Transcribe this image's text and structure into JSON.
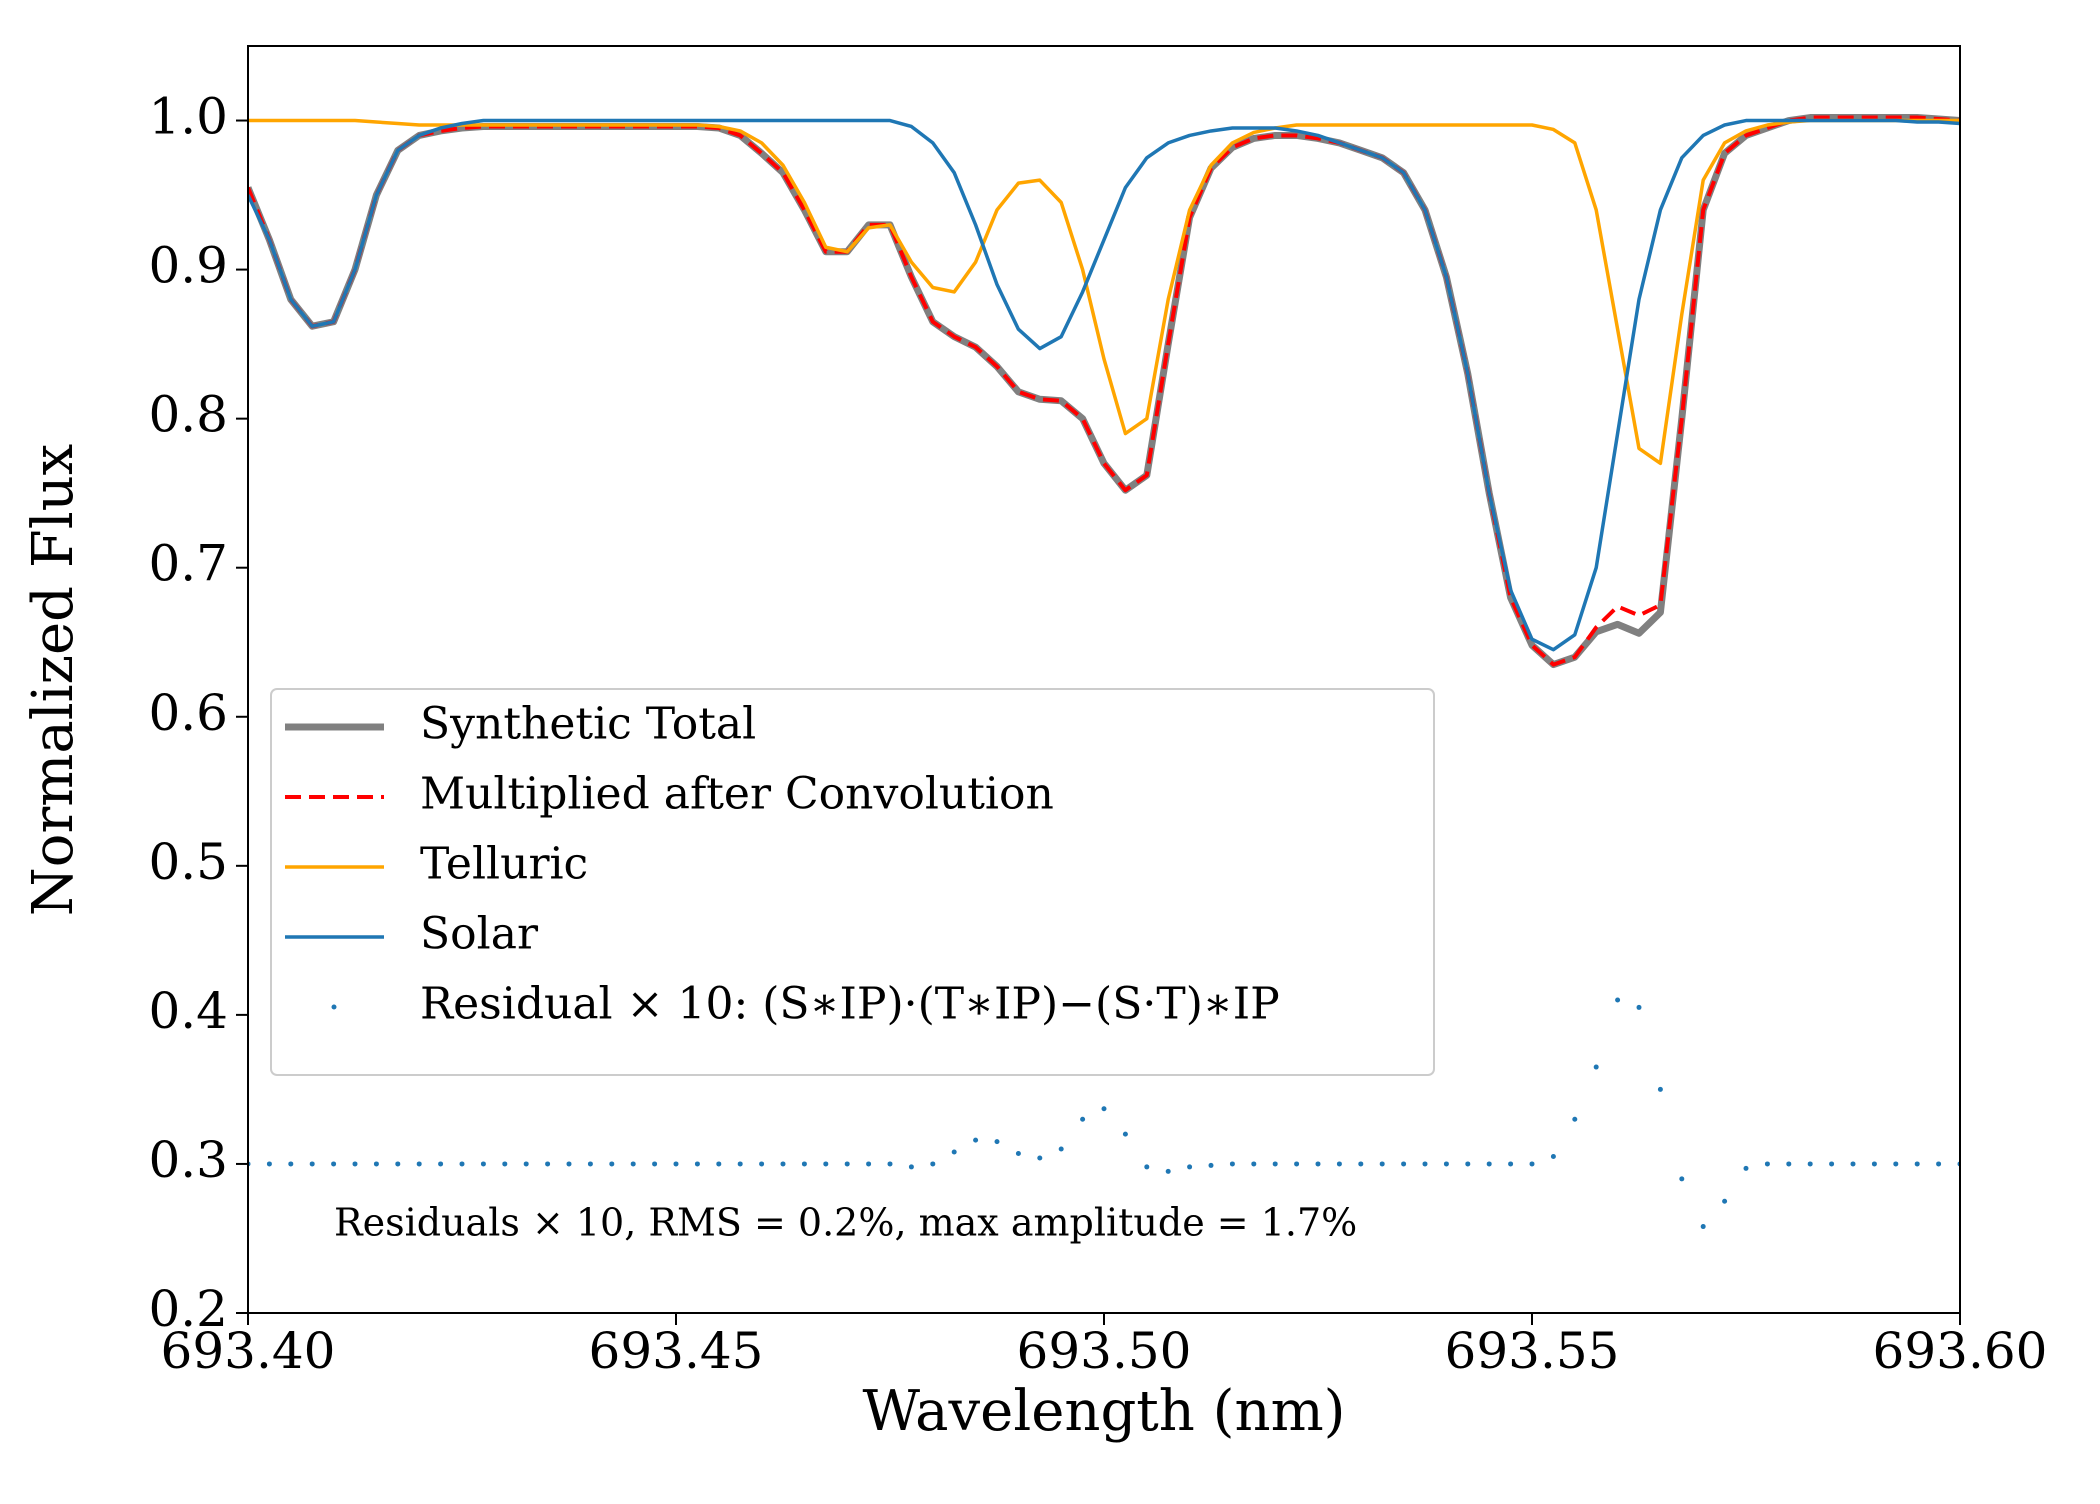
{
  "chart_data": {
    "type": "line",
    "xlabel": "Wavelength (nm)",
    "ylabel": "Normalized Flux",
    "annotation": "Residuals × 10, RMS = 0.2%, max amplitude = 1.7%",
    "xlim": [
      693.4,
      693.6
    ],
    "ylim": [
      0.2,
      1.05
    ],
    "xticks": [
      {
        "value": 693.4,
        "label": "693.40"
      },
      {
        "value": 693.45,
        "label": "693.45"
      },
      {
        "value": 693.5,
        "label": "693.50"
      },
      {
        "value": 693.55,
        "label": "693.55"
      },
      {
        "value": 693.6,
        "label": "693.60"
      }
    ],
    "yticks": [
      0.2,
      0.3,
      0.4,
      0.5,
      0.6,
      0.7,
      0.8,
      0.9,
      {
        "value": 1,
        "label": "1.0"
      }
    ],
    "legend": true,
    "x": [
      693.4,
      693.4025,
      693.405,
      693.4075,
      693.41,
      693.4125,
      693.415,
      693.4175,
      693.42,
      693.4225,
      693.425,
      693.4275,
      693.43,
      693.4325,
      693.435,
      693.4375,
      693.44,
      693.4425,
      693.445,
      693.4475,
      693.45,
      693.4525,
      693.455,
      693.4575,
      693.46,
      693.4625,
      693.465,
      693.4675,
      693.47,
      693.4725,
      693.475,
      693.4775,
      693.48,
      693.4825,
      693.485,
      693.4875,
      693.49,
      693.4925,
      693.495,
      693.4975,
      693.5,
      693.5025,
      693.505,
      693.5075,
      693.51,
      693.5125,
      693.515,
      693.5175,
      693.52,
      693.5225,
      693.525,
      693.5275,
      693.53,
      693.5325,
      693.535,
      693.5375,
      693.54,
      693.5425,
      693.545,
      693.5475,
      693.55,
      693.5525,
      693.555,
      693.5575,
      693.56,
      693.5625,
      693.565,
      693.5675,
      693.57,
      693.5725,
      693.575,
      693.5775,
      693.58,
      693.5825,
      693.585,
      693.5875,
      693.59,
      693.5925,
      693.595,
      693.5975,
      693.6
    ],
    "series": [
      {
        "name": "Synthetic Total",
        "color": "#808080",
        "linestyle": "solid",
        "width": 7,
        "values": [
          0.955,
          0.92,
          0.88,
          0.862,
          0.865,
          0.9,
          0.95,
          0.98,
          0.99,
          0.993,
          0.995,
          0.996,
          0.996,
          0.996,
          0.996,
          0.996,
          0.996,
          0.996,
          0.996,
          0.996,
          0.996,
          0.996,
          0.995,
          0.99,
          0.978,
          0.965,
          0.94,
          0.912,
          0.912,
          0.93,
          0.93,
          0.895,
          0.865,
          0.855,
          0.848,
          0.835,
          0.818,
          0.813,
          0.812,
          0.8,
          0.77,
          0.752,
          0.762,
          0.85,
          0.935,
          0.968,
          0.982,
          0.988,
          0.99,
          0.99,
          0.988,
          0.985,
          0.98,
          0.975,
          0.965,
          0.94,
          0.895,
          0.83,
          0.75,
          0.68,
          0.648,
          0.635,
          0.64,
          0.657,
          0.662,
          0.656,
          0.67,
          0.8,
          0.94,
          0.978,
          0.99,
          0.995,
          1,
          1.002,
          1.002,
          1.002,
          1.002,
          1.002,
          1.002,
          1.001,
          1
        ]
      },
      {
        "name": "Multiplied after Convolution",
        "color": "#ff0000",
        "linestyle": "dashed",
        "width": 4,
        "values": [
          0.955,
          0.92,
          0.88,
          0.862,
          0.865,
          0.9,
          0.95,
          0.98,
          0.99,
          0.993,
          0.995,
          0.996,
          0.996,
          0.996,
          0.996,
          0.996,
          0.996,
          0.996,
          0.996,
          0.996,
          0.996,
          0.996,
          0.995,
          0.99,
          0.978,
          0.965,
          0.94,
          0.912,
          0.912,
          0.93,
          0.93,
          0.895,
          0.865,
          0.855,
          0.848,
          0.835,
          0.818,
          0.813,
          0.812,
          0.8,
          0.77,
          0.752,
          0.762,
          0.85,
          0.935,
          0.968,
          0.982,
          0.988,
          0.99,
          0.99,
          0.988,
          0.985,
          0.98,
          0.975,
          0.965,
          0.94,
          0.895,
          0.83,
          0.75,
          0.68,
          0.648,
          0.635,
          0.64,
          0.66,
          0.674,
          0.668,
          0.675,
          0.8,
          0.94,
          0.978,
          0.99,
          0.995,
          1,
          1.002,
          1.002,
          1.002,
          1.002,
          1.002,
          1.002,
          1.001,
          1
        ]
      },
      {
        "name": "Telluric",
        "color": "#ffa500",
        "linestyle": "solid",
        "width": 3.5,
        "values": [
          1,
          1,
          1,
          1,
          1,
          1,
          0.999,
          0.998,
          0.997,
          0.997,
          0.997,
          0.997,
          0.997,
          0.997,
          0.997,
          0.997,
          0.997,
          0.997,
          0.997,
          0.997,
          0.997,
          0.997,
          0.996,
          0.993,
          0.985,
          0.97,
          0.945,
          0.915,
          0.912,
          0.928,
          0.93,
          0.905,
          0.888,
          0.885,
          0.905,
          0.94,
          0.958,
          0.96,
          0.945,
          0.9,
          0.84,
          0.79,
          0.8,
          0.88,
          0.94,
          0.97,
          0.985,
          0.992,
          0.995,
          0.997,
          0.997,
          0.997,
          0.997,
          0.997,
          0.997,
          0.997,
          0.997,
          0.997,
          0.997,
          0.997,
          0.997,
          0.994,
          0.985,
          0.94,
          0.86,
          0.78,
          0.77,
          0.87,
          0.96,
          0.985,
          0.993,
          0.997,
          0.999,
          1,
          1,
          1,
          1,
          1,
          1,
          1,
          1
        ]
      },
      {
        "name": "Solar",
        "color": "#1f77b4",
        "linestyle": "solid",
        "width": 3.5,
        "values": [
          0.95,
          0.92,
          0.88,
          0.862,
          0.865,
          0.9,
          0.95,
          0.98,
          0.99,
          0.995,
          0.998,
          1,
          1,
          1,
          1,
          1,
          1,
          1,
          1,
          1,
          1,
          1,
          1,
          1,
          1,
          1,
          1,
          1,
          1,
          1,
          1,
          0.996,
          0.985,
          0.965,
          0.93,
          0.89,
          0.86,
          0.847,
          0.855,
          0.885,
          0.92,
          0.955,
          0.975,
          0.985,
          0.99,
          0.993,
          0.995,
          0.995,
          0.995,
          0.993,
          0.99,
          0.985,
          0.98,
          0.975,
          0.965,
          0.94,
          0.895,
          0.83,
          0.75,
          0.685,
          0.652,
          0.645,
          0.655,
          0.7,
          0.79,
          0.88,
          0.94,
          0.975,
          0.99,
          0.997,
          1,
          1,
          1,
          1,
          1,
          1,
          1,
          1,
          0.999,
          0.999,
          0.998
        ]
      },
      {
        "name": "Residual × 10: (S∗IP)·(T∗IP)−(S·T)∗IP",
        "color": "#1f77b4",
        "linestyle": "dots",
        "width": 2.5,
        "values": [
          0.3,
          0.3,
          0.3,
          0.3,
          0.3,
          0.3,
          0.3,
          0.3,
          0.3,
          0.3,
          0.3,
          0.3,
          0.3,
          0.3,
          0.3,
          0.3,
          0.3,
          0.3,
          0.3,
          0.3,
          0.3,
          0.3,
          0.3,
          0.3,
          0.3,
          0.3,
          0.3,
          0.3,
          0.3,
          0.3,
          0.3,
          0.298,
          0.3,
          0.308,
          0.316,
          0.315,
          0.307,
          0.304,
          0.31,
          0.33,
          0.337,
          0.32,
          0.298,
          0.295,
          0.298,
          0.299,
          0.3,
          0.3,
          0.3,
          0.3,
          0.3,
          0.3,
          0.3,
          0.3,
          0.3,
          0.3,
          0.3,
          0.3,
          0.3,
          0.3,
          0.3,
          0.305,
          0.33,
          0.365,
          0.41,
          0.405,
          0.35,
          0.29,
          0.258,
          0.275,
          0.297,
          0.3,
          0.3,
          0.3,
          0.3,
          0.3,
          0.3,
          0.3,
          0.3,
          0.3,
          0.3
        ]
      }
    ]
  }
}
